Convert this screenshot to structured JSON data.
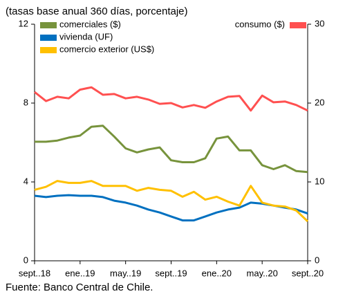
{
  "chart_data": {
    "type": "line",
    "subtitle": "(tasas base anual 360 días, porcentaje)",
    "source": "Fuente: Banco Central de Chile.",
    "categories": [
      "sept..18",
      null,
      null,
      null,
      "ene..19",
      null,
      null,
      null,
      "may..19",
      null,
      null,
      null,
      "sept..19",
      null,
      null,
      null,
      "ene..20",
      null,
      null,
      null,
      "may..20",
      null,
      null,
      null,
      "sept..20"
    ],
    "ylim": [
      0,
      12
    ],
    "yticks": [
      0,
      4,
      8,
      12
    ],
    "y2lim": [
      0,
      30
    ],
    "y2ticks": [
      0,
      10,
      20,
      30
    ],
    "series": [
      {
        "name": "comerciales ($)",
        "color": "#77933c",
        "axis": "y",
        "values": [
          6.04,
          6.04,
          6.1,
          6.25,
          6.35,
          6.8,
          6.85,
          6.3,
          5.7,
          5.5,
          5.65,
          5.75,
          5.1,
          5.0,
          5.0,
          5.2,
          6.2,
          6.3,
          5.6,
          5.6,
          4.85,
          4.65,
          4.85,
          4.55,
          4.5
        ]
      },
      {
        "name": "vivienda (UF)",
        "color": "#0070c0",
        "axis": "y",
        "values": [
          3.3,
          3.23,
          3.3,
          3.33,
          3.3,
          3.3,
          3.23,
          3.05,
          2.95,
          2.8,
          2.6,
          2.45,
          2.25,
          2.05,
          2.05,
          2.25,
          2.45,
          2.6,
          2.7,
          2.95,
          2.9,
          2.8,
          2.7,
          2.6,
          2.4
        ]
      },
      {
        "name": "comercio exterior (US$)",
        "color": "#ffc000",
        "axis": "y",
        "values": [
          3.6,
          3.75,
          4.05,
          3.95,
          3.95,
          4.05,
          3.8,
          3.8,
          3.8,
          3.55,
          3.7,
          3.6,
          3.55,
          3.25,
          3.5,
          3.1,
          3.25,
          3.0,
          2.8,
          3.8,
          2.95,
          2.8,
          2.75,
          2.55,
          2.0
        ]
      },
      {
        "name": "consumo ($)",
        "color": "#ff5050",
        "axis": "y2",
        "values": [
          21.4,
          20.25,
          20.8,
          20.6,
          21.7,
          22.0,
          21.05,
          21.15,
          20.6,
          20.8,
          20.45,
          19.9,
          20.0,
          19.45,
          19.75,
          19.4,
          20.2,
          20.8,
          20.9,
          19.05,
          20.95,
          20.1,
          20.2,
          19.75,
          19.05
        ]
      }
    ]
  }
}
